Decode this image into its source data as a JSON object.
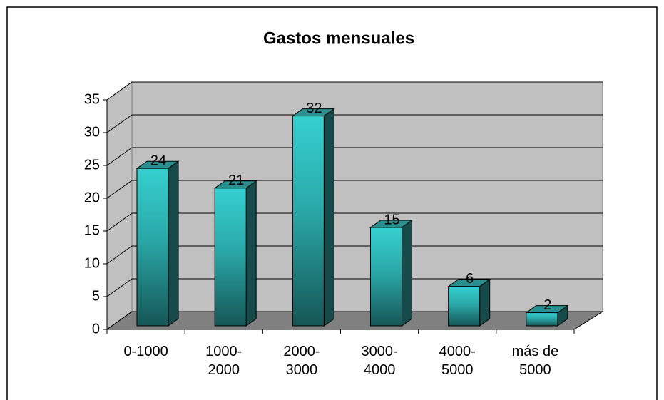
{
  "chart_data": {
    "type": "bar",
    "title": "Gastos mensuales",
    "categories": [
      "0-1000",
      "1000-2000",
      "2000-3000",
      "3000-4000",
      "4000-5000",
      "más de 5000"
    ],
    "values": [
      24,
      21,
      32,
      15,
      6,
      2
    ],
    "color": "#33cccc",
    "ylim": [
      0,
      35
    ],
    "yticks": [
      0,
      5,
      10,
      15,
      20,
      25,
      30,
      35
    ],
    "grid": true
  }
}
